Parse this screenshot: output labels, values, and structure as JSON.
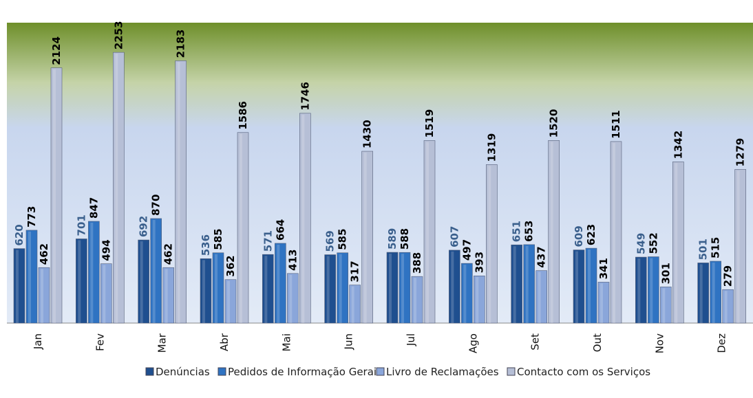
{
  "chart_data": {
    "type": "bar",
    "categories": [
      "Jan",
      "Fev",
      "Mar",
      "Abr",
      "Mai",
      "Jun",
      "Jul",
      "Ago",
      "Set",
      "Out",
      "Nov",
      "Dez"
    ],
    "series": [
      {
        "name": "Denúncias",
        "color": "#1f4f8f",
        "values": [
          620,
          701,
          692,
          536,
          571,
          569,
          589,
          607,
          651,
          609,
          549,
          501
        ]
      },
      {
        "name": "Pedidos de Informação Gerais",
        "color": "#2f73c2",
        "values": [
          773,
          847,
          870,
          585,
          664,
          585,
          588,
          497,
          653,
          623,
          552,
          515
        ]
      },
      {
        "name": "Livro de Reclamações",
        "color": "#8aa6da",
        "values": [
          462,
          494,
          462,
          362,
          413,
          317,
          388,
          393,
          437,
          341,
          301,
          279
        ]
      },
      {
        "name": "Contacto com os Serviços",
        "color": "#b6bfd6",
        "values": [
          2124,
          2253,
          2183,
          1586,
          1746,
          1430,
          1519,
          1319,
          1520,
          1511,
          1342,
          1279
        ]
      }
    ],
    "ylim": [
      0,
      2500
    ]
  }
}
